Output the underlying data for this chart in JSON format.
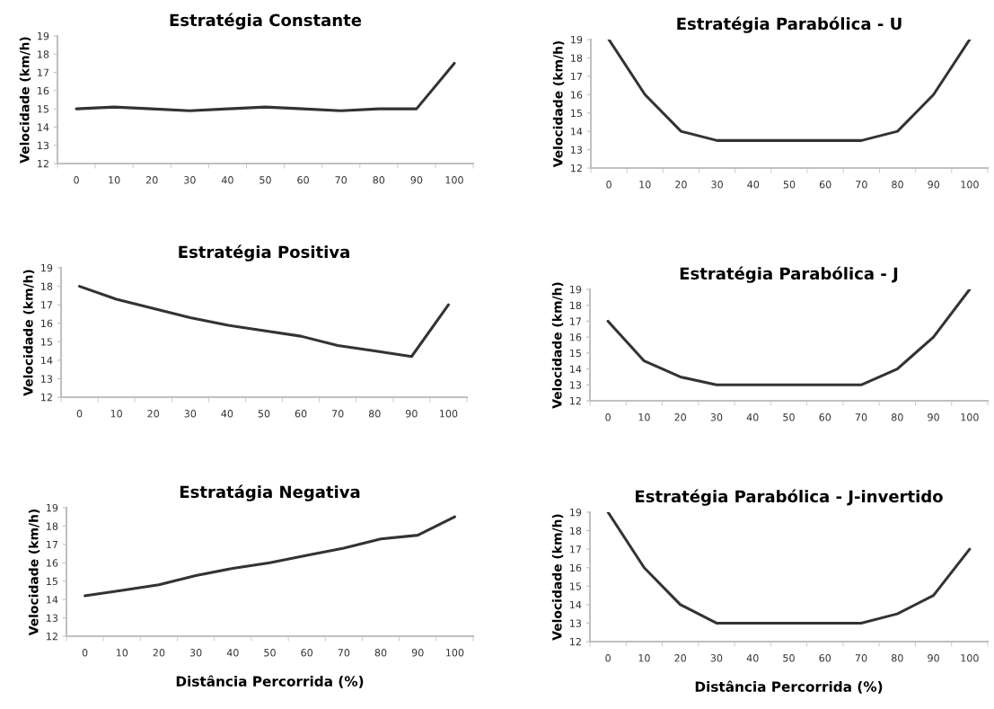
{
  "chart_data": [
    {
      "type": "line",
      "title": "Estratégia Constante",
      "ylabel": "Velocidade (km/h)",
      "categories": [
        "0",
        "10",
        "20",
        "30",
        "40",
        "50",
        "60",
        "70",
        "80",
        "90",
        "100"
      ],
      "series": [
        {
          "color": "#333333",
          "values": [
            15,
            15.1,
            15,
            14.9,
            15,
            15.1,
            15,
            14.9,
            15,
            15,
            17.5
          ]
        }
      ],
      "ylim": [
        12,
        19
      ],
      "yticks": [
        12,
        13,
        14,
        15,
        16,
        17,
        18,
        19
      ],
      "grid": false,
      "marker": "none",
      "line_style": "solid"
    },
    {
      "type": "line",
      "title": "Estratégia Parabólica - U",
      "ylabel": "Velocidade (km/h)",
      "categories": [
        "0",
        "10",
        "20",
        "30",
        "40",
        "50",
        "60",
        "70",
        "80",
        "90",
        "100"
      ],
      "series": [
        {
          "color": "#333333",
          "values": [
            19,
            16,
            14,
            13.5,
            13.5,
            13.5,
            13.5,
            13.5,
            14,
            16,
            19
          ]
        }
      ],
      "ylim": [
        12,
        19
      ],
      "yticks": [
        12,
        13,
        14,
        15,
        16,
        17,
        18,
        19
      ],
      "grid": false,
      "marker": "none",
      "line_style": "solid"
    },
    {
      "type": "line",
      "title": "Estratégia Positiva",
      "ylabel": "Velocidade (km/h)",
      "categories": [
        "0",
        "10",
        "20",
        "30",
        "40",
        "50",
        "60",
        "70",
        "80",
        "90",
        "100"
      ],
      "series": [
        {
          "color": "#333333",
          "values": [
            18,
            17.3,
            16.8,
            16.3,
            15.9,
            15.6,
            15.3,
            14.8,
            14.5,
            14.2,
            17
          ]
        }
      ],
      "ylim": [
        12,
        19
      ],
      "yticks": [
        12,
        13,
        14,
        15,
        16,
        17,
        18,
        19
      ],
      "grid": false,
      "marker": "none",
      "line_style": "solid"
    },
    {
      "type": "line",
      "title": "Estratégia Parabólica - J",
      "ylabel": "Velocidade (km/h)",
      "categories": [
        "0",
        "10",
        "20",
        "30",
        "40",
        "50",
        "60",
        "70",
        "80",
        "90",
        "100"
      ],
      "series": [
        {
          "color": "#333333",
          "values": [
            17,
            14.5,
            13.5,
            13,
            13,
            13,
            13,
            13,
            14,
            16,
            19
          ]
        }
      ],
      "ylim": [
        12,
        19
      ],
      "yticks": [
        12,
        13,
        14,
        15,
        16,
        17,
        18,
        19
      ],
      "grid": false,
      "marker": "none",
      "line_style": "solid"
    },
    {
      "type": "line",
      "title": "Estratágia Negativa",
      "xlabel": "Distância Percorrida (%)",
      "ylabel": "Velocidade (km/h)",
      "categories": [
        "0",
        "10",
        "20",
        "30",
        "40",
        "50",
        "60",
        "70",
        "80",
        "90",
        "100"
      ],
      "series": [
        {
          "color": "#333333",
          "values": [
            14.2,
            14.5,
            14.8,
            15.3,
            15.7,
            16,
            16.4,
            16.8,
            17.3,
            17.5,
            18.5
          ]
        }
      ],
      "ylim": [
        12,
        19
      ],
      "yticks": [
        12,
        13,
        14,
        15,
        16,
        17,
        18,
        19
      ],
      "grid": false,
      "marker": "none",
      "line_style": "solid"
    },
    {
      "type": "line",
      "title": "Estratégia Parabólica - J-invertido",
      "xlabel": "Distância Percorrida (%)",
      "ylabel": "Velocidade (km/h)",
      "categories": [
        "0",
        "10",
        "20",
        "30",
        "40",
        "50",
        "60",
        "70",
        "80",
        "90",
        "100"
      ],
      "series": [
        {
          "color": "#333333",
          "values": [
            19,
            16,
            14,
            13,
            13,
            13,
            13,
            13,
            13.5,
            14.5,
            17
          ]
        }
      ],
      "ylim": [
        12,
        19
      ],
      "yticks": [
        12,
        13,
        14,
        15,
        16,
        17,
        18,
        19
      ],
      "grid": false,
      "marker": "none",
      "line_style": "solid"
    }
  ]
}
